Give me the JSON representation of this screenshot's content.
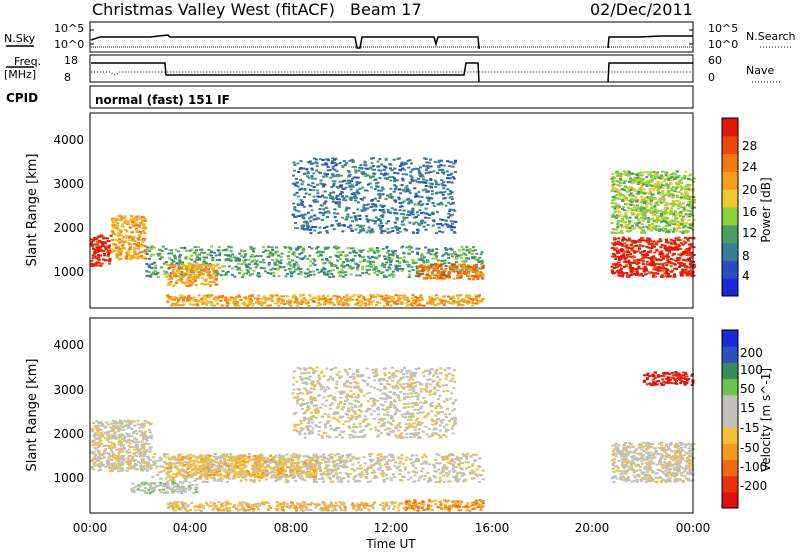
{
  "header": {
    "title": "Christmas Valley West (fitACF)",
    "beam": "Beam 17",
    "date": "02/Dec/2011"
  },
  "panels": {
    "nsky": {
      "left_label": "N.Sky",
      "left_ticks": [
        "10^5",
        "10^0"
      ],
      "right_label": "N.Search",
      "right_ticks": [
        "10^5",
        "10^0"
      ]
    },
    "freq": {
      "left_label_1": "Freq.",
      "left_label_2": "[MHz]",
      "left_ticks": [
        "18",
        "8"
      ],
      "right_label": "Nave",
      "right_ticks": [
        "60",
        "0"
      ]
    },
    "cpid": {
      "label": "CPID",
      "value": "normal (fast) 151 IF"
    }
  },
  "axes": {
    "x_label": "Time UT",
    "x_ticks": [
      "00:00",
      "04:00",
      "08:00",
      "12:00",
      "16:00",
      "20:00",
      "00:00"
    ],
    "y_label": "Slant Range [km]",
    "y_ticks": [
      "1000",
      "2000",
      "3000",
      "4000"
    ]
  },
  "colorbars": {
    "power": {
      "label": "Power [dB]",
      "ticks": [
        "4",
        "8",
        "12",
        "16",
        "20",
        "24",
        "28"
      ],
      "colors": [
        "#1a2ad6",
        "#2a4cc4",
        "#3a7a9a",
        "#48a060",
        "#8ccf3a",
        "#f2c830",
        "#f5a020",
        "#f07a10",
        "#ea4a08",
        "#e01808"
      ]
    },
    "velocity": {
      "label": "Velocity [m s^-1]",
      "ticks": [
        "200",
        "100",
        "50",
        "15",
        "-15",
        "-50",
        "-100",
        "-200"
      ],
      "colors": [
        "#1a2ad6",
        "#2a50c0",
        "#3a8a5a",
        "#6cc24a",
        "#c0c0b8",
        "#c0c0b8",
        "#f2c038",
        "#f39a20",
        "#f06a10",
        "#ea3008",
        "#e01010"
      ]
    }
  },
  "chart_data": [
    {
      "type": "heatmap",
      "title": "Power",
      "xlabel": "Time UT",
      "ylabel": "Slant Range [km]",
      "xlim": [
        "00:00",
        "24:00"
      ],
      "ylim": [
        180,
        4600
      ],
      "colorbar": "Power [dB]",
      "colorbar_range": [
        0,
        30
      ],
      "data_gap": [
        "15:40",
        "20:40"
      ],
      "regions": [
        {
          "t": [
            0.0,
            0.8
          ],
          "range_km": [
            1150,
            1850
          ],
          "power_db": 28
        },
        {
          "t": [
            0.8,
            2.2
          ],
          "range_km": [
            1300,
            2300
          ],
          "power_db": 20
        },
        {
          "t": [
            2.2,
            15.6
          ],
          "range_km": [
            900,
            1600
          ],
          "power_db": 10
        },
        {
          "t": [
            3.0,
            5.0
          ],
          "range_km": [
            700,
            1200
          ],
          "power_db": 20
        },
        {
          "t": [
            13.0,
            15.6
          ],
          "range_km": [
            850,
            1200
          ],
          "power_db": 22
        },
        {
          "t": [
            3.0,
            15.6
          ],
          "range_km": [
            250,
            500
          ],
          "power_db": 18
        },
        {
          "t": [
            8.0,
            14.5
          ],
          "range_km": [
            1900,
            3600
          ],
          "power_db": 6
        },
        {
          "t": [
            20.7,
            24.0
          ],
          "range_km": [
            900,
            1800
          ],
          "power_db": 28
        },
        {
          "t": [
            20.7,
            24.0
          ],
          "range_km": [
            1900,
            3300
          ],
          "power_db": 12
        }
      ]
    },
    {
      "type": "heatmap",
      "title": "Velocity",
      "xlabel": "Time UT",
      "ylabel": "Slant Range [km]",
      "xlim": [
        "00:00",
        "24:00"
      ],
      "ylim": [
        180,
        4600
      ],
      "colorbar": "Velocity [m s^-1]",
      "colorbar_range": [
        -200,
        200
      ],
      "data_gap": [
        "15:40",
        "20:40"
      ],
      "regions": [
        {
          "t": [
            0.0,
            2.4
          ],
          "range_km": [
            1150,
            2300
          ],
          "velocity": 0
        },
        {
          "t": [
            2.4,
            15.6
          ],
          "range_km": [
            900,
            1550
          ],
          "velocity": -5
        },
        {
          "t": [
            3.0,
            9.0
          ],
          "range_km": [
            1000,
            1500
          ],
          "velocity": -45
        },
        {
          "t": [
            1.6,
            4.2
          ],
          "range_km": [
            650,
            900
          ],
          "velocity": 35
        },
        {
          "t": [
            12.5,
            15.6
          ],
          "range_km": [
            250,
            500
          ],
          "velocity": -60
        },
        {
          "t": [
            3.0,
            12.5
          ],
          "range_km": [
            250,
            450
          ],
          "velocity": -40
        },
        {
          "t": [
            8.0,
            14.5
          ],
          "range_km": [
            1900,
            3500
          ],
          "velocity": 10
        },
        {
          "t": [
            20.7,
            24.0
          ],
          "range_km": [
            900,
            1800
          ],
          "velocity": 0
        },
        {
          "t": [
            22.0,
            24.0
          ],
          "range_km": [
            3100,
            3400
          ],
          "velocity": -220
        }
      ]
    }
  ]
}
